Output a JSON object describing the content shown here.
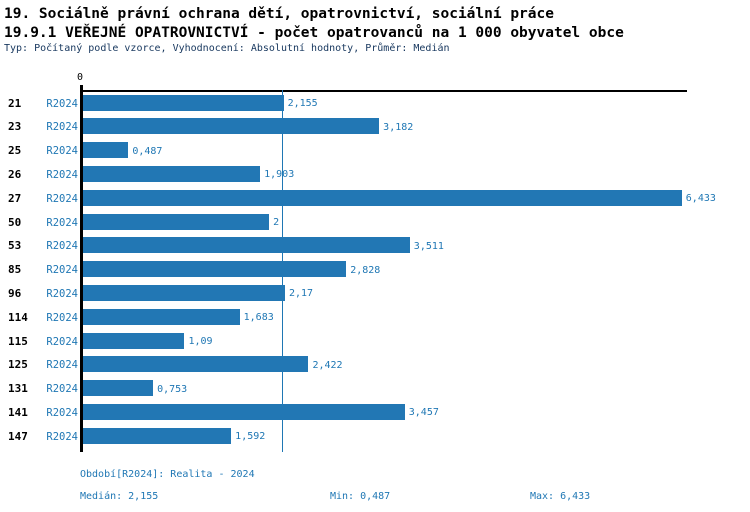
{
  "title_line1": "19. Sociálně právní ochrana dětí, opatrovnictví, sociální práce",
  "title_line2": "19.9.1 VEŘEJNÉ OPATROVNICTVÍ - počet opatrovanců na 1 000 obyvatel obce",
  "subtitle": "Typ: Počítaný podle vzorce, Vyhodnocení: Absolutní hodnoty, Průměr: Medián",
  "colors": {
    "bar": "#2277b4",
    "blue_text": "#1f77b4",
    "subtitle_text": "#17375e",
    "axis": "#000000"
  },
  "chart_data": {
    "type": "bar",
    "orientation": "horizontal",
    "title": "19.9.1 VEŘEJNÉ OPATROVNICTVÍ - počet opatrovanců na 1 000 obyvatel obce",
    "categories": [
      "21",
      "23",
      "25",
      "26",
      "27",
      "50",
      "53",
      "85",
      "96",
      "114",
      "115",
      "125",
      "131",
      "141",
      "147"
    ],
    "series": [
      {
        "name": "R2024",
        "values": [
          2.155,
          3.182,
          0.487,
          1.903,
          6.433,
          2,
          3.511,
          2.828,
          2.17,
          1.683,
          1.09,
          2.422,
          0.753,
          3.457,
          1.592
        ],
        "value_labels": [
          "2,155",
          "3,182",
          "0,487",
          "1,903",
          "6,433",
          "2",
          "3,511",
          "2,828",
          "2,17",
          "1,683",
          "1,09",
          "2,422",
          "0,753",
          "3,457",
          "1,592"
        ]
      }
    ],
    "row_period_label": "R2024",
    "xlim": [
      0,
      6.5
    ],
    "x_tick_labels": [
      "0"
    ],
    "zero_tick": "0",
    "median_reference_line": 2.155,
    "grid": false,
    "legend_position": "none"
  },
  "footer": {
    "period_line": "Období[R2024]: Realita - 2024",
    "median": "Medián: 2,155",
    "min": "Min: 0,487",
    "max": "Max: 6,433"
  }
}
